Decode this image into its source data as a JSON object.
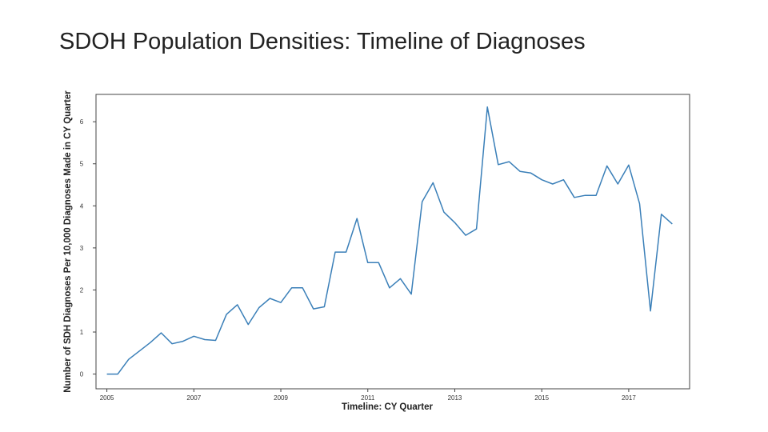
{
  "slide": {
    "title": "SDOH Population Densities: Timeline of Diagnoses"
  },
  "chart_data": {
    "type": "line",
    "xlabel": "Timeline: CY Quarter",
    "ylabel": "Number of SDH Diagnoses Per 10,000 Diagnoses Made in CY Quarter",
    "xlim": [
      2004.75,
      2018.4
    ],
    "ylim": [
      -0.35,
      6.65
    ],
    "xticks": [
      2005,
      2007,
      2009,
      2011,
      2013,
      2015,
      2017
    ],
    "yticks": [
      0,
      1,
      2,
      3,
      4,
      5,
      6
    ],
    "grid": false,
    "series_color": "#3a7fb8",
    "series": [
      {
        "x": [
          2005.0,
          2005.25,
          2005.5,
          2005.75,
          2006.0,
          2006.25,
          2006.5,
          2006.75,
          2007.0,
          2007.25,
          2007.5,
          2007.75,
          2008.0,
          2008.25,
          2008.5,
          2008.75,
          2009.0,
          2009.25,
          2009.5,
          2009.75,
          2010.0,
          2010.25,
          2010.5,
          2010.75,
          2011.0,
          2011.25,
          2011.5,
          2011.75,
          2012.0,
          2012.25,
          2012.5,
          2012.75,
          2013.0,
          2013.25,
          2013.5,
          2013.75,
          2014.0,
          2014.25,
          2014.5,
          2014.75,
          2015.0,
          2015.25,
          2015.5,
          2015.75,
          2016.0,
          2016.25,
          2016.5,
          2016.75,
          2017.0,
          2017.25,
          2017.5,
          2017.75,
          2018.0
        ],
        "values": [
          0.0,
          0.0,
          0.35,
          0.55,
          0.75,
          0.98,
          0.72,
          0.78,
          0.9,
          0.82,
          0.8,
          1.42,
          1.65,
          1.18,
          1.58,
          1.8,
          1.7,
          2.05,
          2.05,
          1.55,
          1.6,
          2.9,
          2.9,
          3.7,
          2.65,
          2.65,
          2.05,
          2.27,
          1.9,
          4.1,
          4.55,
          3.85,
          3.6,
          3.3,
          3.45,
          6.35,
          4.98,
          5.05,
          4.82,
          4.78,
          4.62,
          4.52,
          4.62,
          4.2,
          4.25,
          4.25,
          4.95,
          4.52,
          4.97,
          4.05,
          1.5,
          3.8,
          3.57
        ]
      }
    ]
  }
}
